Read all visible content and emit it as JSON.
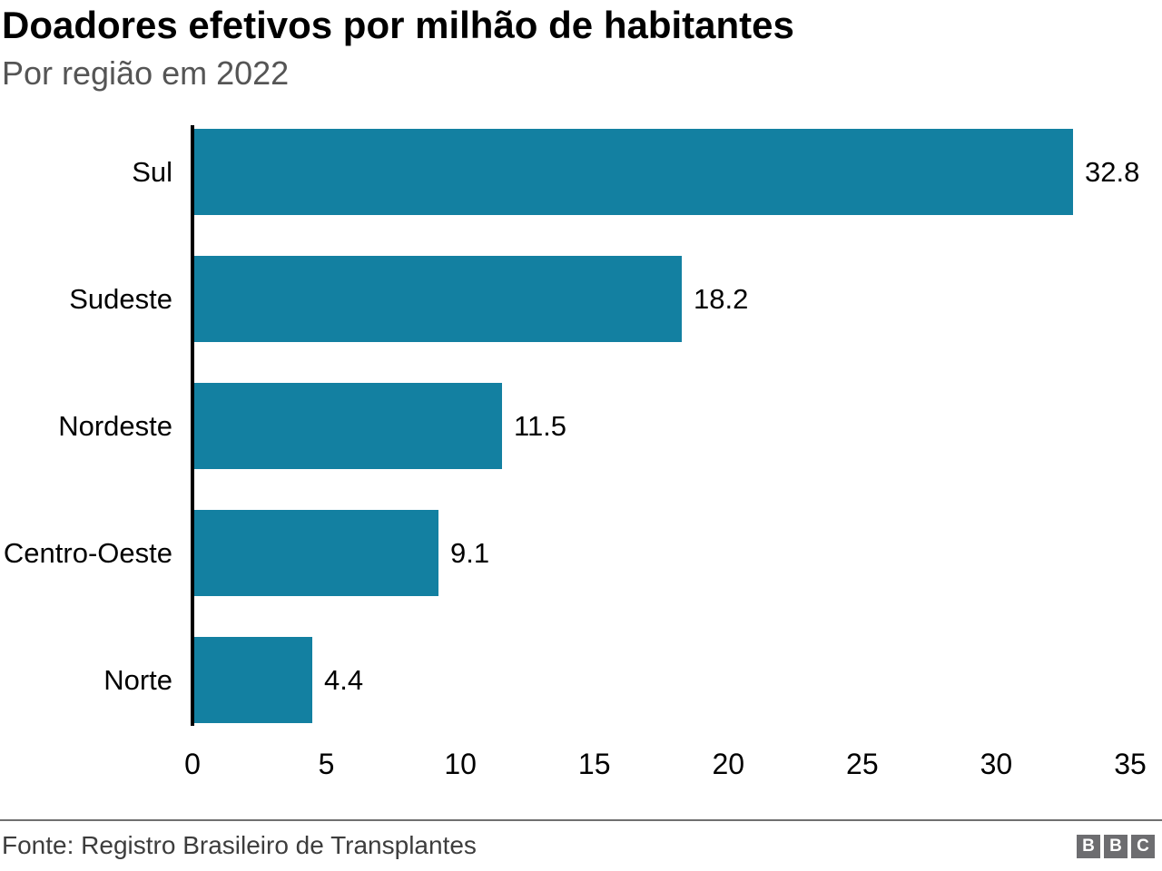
{
  "header": {
    "title": "Doadores efetivos por milhão de habitantes",
    "subtitle": "Por região em 2022"
  },
  "footer": {
    "source": "Fonte: Registro Brasileiro de Transplantes",
    "logo_letters": [
      "B",
      "B",
      "C"
    ]
  },
  "colors": {
    "bar": "#1380A1",
    "axis": "#000000",
    "title_text": "#000000",
    "subtitle_text": "#555555",
    "divider": "#707070",
    "source_text": "#3d3d3d",
    "logo_gray": "#6d6d70"
  },
  "chart_data": {
    "type": "bar",
    "orientation": "horizontal",
    "title": "Doadores efetivos por milhão de habitantes",
    "subtitle": "Por região em 2022",
    "categories": [
      "Sul",
      "Sudeste",
      "Nordeste",
      "Centro-Oeste",
      "Norte"
    ],
    "values": [
      32.8,
      18.2,
      11.5,
      9.1,
      4.4
    ],
    "value_labels": [
      "32.8",
      "18.2",
      "11.5",
      "9.1",
      "4.4"
    ],
    "xlabel": "",
    "ylabel": "",
    "xlim": [
      0,
      35
    ],
    "xticks": [
      0,
      5,
      10,
      15,
      20,
      25,
      30,
      35
    ],
    "grid": false,
    "legend": null,
    "bar_color": "#1380A1"
  }
}
